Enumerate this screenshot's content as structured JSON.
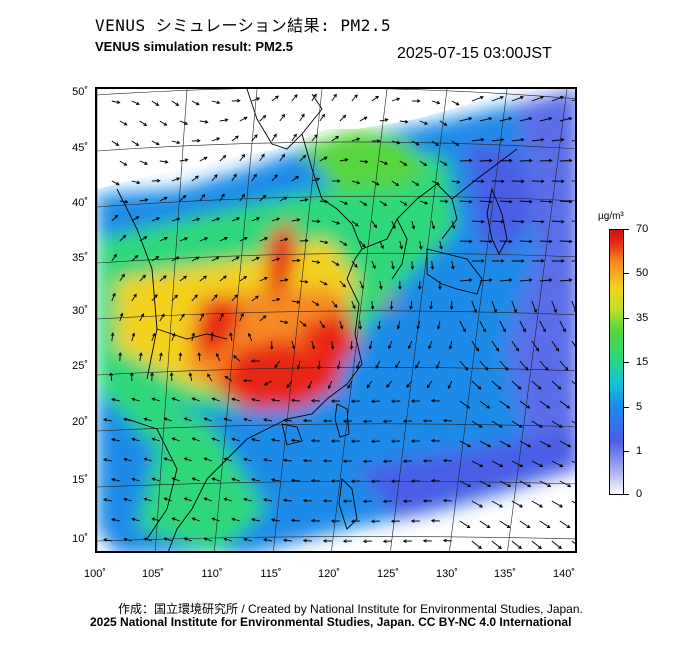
{
  "header": {
    "title_ja": "VENUS シミュレーション結果: PM2.5",
    "title_en": "VENUS simulation result: PM2.5",
    "timestamp": "2025-07-15 03:00JST"
  },
  "map": {
    "lat_labels": [
      "50˚",
      "45˚",
      "40˚",
      "35˚",
      "30˚",
      "25˚",
      "20˚",
      "15˚",
      "10˚"
    ],
    "lon_labels": [
      "100˚",
      "105˚",
      "110˚",
      "115˚",
      "120˚",
      "125˚",
      "130˚",
      "135˚",
      "140˚"
    ]
  },
  "legend": {
    "unit": "µg/m³",
    "ticks": [
      "70",
      "50",
      "35",
      "15",
      "5",
      "1",
      "0"
    ],
    "colors": [
      "#ffffff",
      "#4a5ee6",
      "#12c3d6",
      "#58d63c",
      "#f2d21c",
      "#f58a20",
      "#e82818"
    ]
  },
  "footer": {
    "credit_ja": "作成：国立環境研究所 / Created by National Institute for Environmental Studies, Japan.",
    "credit_en": "2025 National Institute for Environmental Studies, Japan. CC BY-NC 4.0 International"
  }
}
